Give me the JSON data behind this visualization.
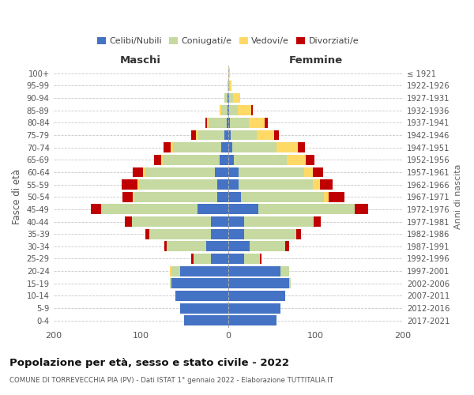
{
  "age_groups": [
    "0-4",
    "5-9",
    "10-14",
    "15-19",
    "20-24",
    "25-29",
    "30-34",
    "35-39",
    "40-44",
    "45-49",
    "50-54",
    "55-59",
    "60-64",
    "65-69",
    "70-74",
    "75-79",
    "80-84",
    "85-89",
    "90-94",
    "95-99",
    "100+"
  ],
  "birth_years": [
    "2017-2021",
    "2012-2016",
    "2007-2011",
    "2002-2006",
    "1997-2001",
    "1992-1996",
    "1987-1991",
    "1982-1986",
    "1977-1981",
    "1972-1976",
    "1967-1971",
    "1962-1966",
    "1957-1961",
    "1952-1956",
    "1947-1951",
    "1942-1946",
    "1937-1941",
    "1932-1936",
    "1927-1931",
    "1922-1926",
    "≤ 1921"
  ],
  "maschi": {
    "celibi": [
      50,
      55,
      60,
      65,
      55,
      20,
      25,
      20,
      20,
      35,
      12,
      12,
      15,
      10,
      8,
      4,
      2,
      1,
      1,
      0,
      0
    ],
    "coniugati": [
      0,
      0,
      0,
      2,
      10,
      20,
      45,
      70,
      90,
      110,
      95,
      90,
      80,
      65,
      55,
      30,
      20,
      7,
      3,
      1,
      0
    ],
    "vedovi": [
      0,
      0,
      0,
      0,
      2,
      0,
      0,
      0,
      0,
      0,
      2,
      2,
      2,
      2,
      3,
      3,
      2,
      2,
      0,
      0,
      0
    ],
    "divorziati": [
      0,
      0,
      0,
      0,
      0,
      2,
      3,
      5,
      8,
      12,
      12,
      18,
      12,
      8,
      8,
      5,
      2,
      0,
      0,
      0,
      0
    ]
  },
  "femmine": {
    "nubili": [
      55,
      60,
      65,
      70,
      60,
      18,
      25,
      18,
      18,
      35,
      15,
      12,
      12,
      7,
      5,
      3,
      2,
      1,
      1,
      0,
      0
    ],
    "coniugate": [
      0,
      0,
      0,
      2,
      10,
      18,
      40,
      60,
      80,
      110,
      95,
      85,
      75,
      60,
      50,
      30,
      22,
      10,
      5,
      2,
      0
    ],
    "vedove": [
      0,
      0,
      0,
      0,
      0,
      0,
      0,
      0,
      0,
      0,
      5,
      8,
      10,
      22,
      25,
      20,
      18,
      15,
      8,
      2,
      2
    ],
    "divorziate": [
      0,
      0,
      0,
      0,
      0,
      2,
      5,
      5,
      8,
      15,
      18,
      15,
      12,
      10,
      8,
      5,
      3,
      2,
      0,
      0,
      0
    ]
  },
  "colors": {
    "celibi_nubili": "#4472c4",
    "coniugati": "#c5d9a0",
    "vedovi": "#ffd966",
    "divorziati": "#c00000"
  },
  "xlim": [
    -200,
    200
  ],
  "title": "Popolazione per età, sesso e stato civile - 2022",
  "subtitle": "COMUNE DI TORREVECCHIA PIA (PV) - Dati ISTAT 1° gennaio 2022 - Elaborazione TUTTITALIA.IT",
  "ylabel": "Fasce di età",
  "ylabel_right": "Anni di nascita",
  "xlabel_left": "Maschi",
  "xlabel_right": "Femmine",
  "legend_labels": [
    "Celibi/Nubili",
    "Coniugati/e",
    "Vedovi/e",
    "Divorziati/e"
  ],
  "background_color": "#ffffff",
  "grid_color": "#c8c8c8"
}
